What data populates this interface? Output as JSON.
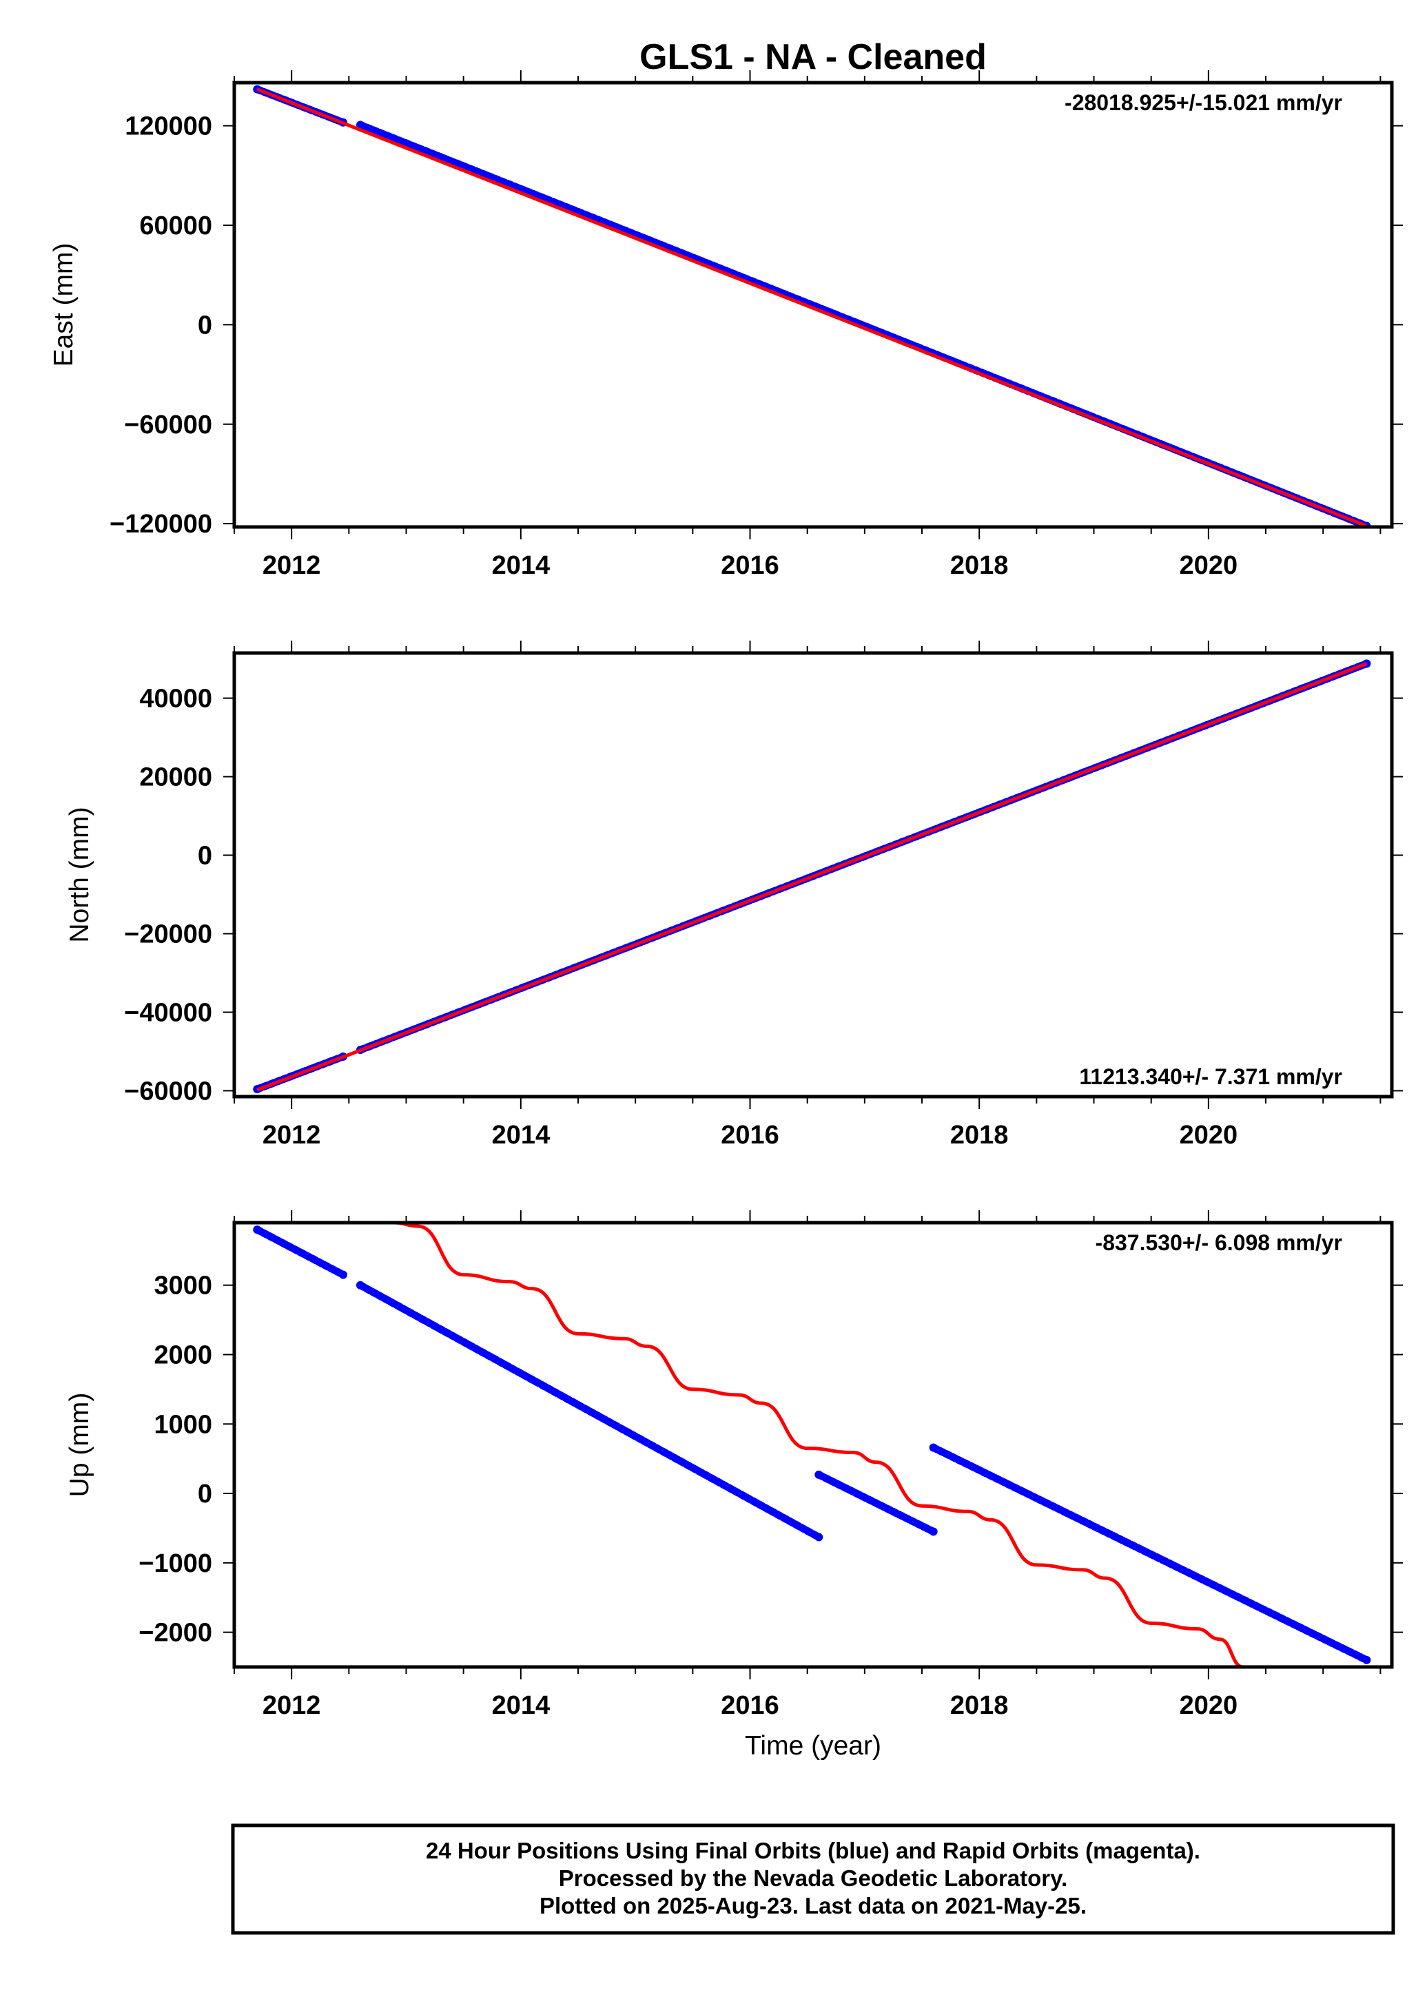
{
  "colors": {
    "final": "#0000ff",
    "rapid": "#ff0000",
    "frame": "#000000"
  },
  "chart_data": {
    "title": "GLS1  - NA - Cleaned",
    "xlabel": "Time (year)",
    "x_ticks": [
      "2012",
      "2014",
      "2016",
      "2018",
      "2020"
    ],
    "xlim": [
      2011.5,
      2021.6
    ],
    "footer": [
      "24 Hour Positions Using Final Orbits (blue) and Rapid Orbits (magenta).",
      "Processed by the Nevada Geodetic Laboratory.",
      "Plotted on 2025-Aug-23. Last data on 2021-May-25."
    ],
    "panels": [
      {
        "type": "scatter",
        "ylabel": "East (mm)",
        "ylim": [
          -122000,
          146000
        ],
        "y_ticks": [
          120000,
          60000,
          0,
          -60000,
          -120000
        ],
        "y_tick_labels": [
          "120000",
          "60000",
          "0",
          "−60000",
          "−120000"
        ],
        "rate": "-28018.925+/-15.021 mm/yr",
        "rate_position": "top-right",
        "series": [
          {
            "type": "scatter",
            "segments": [
              [
                2011.7,
                2012.45,
                142000,
                122000
              ],
              [
                2012.6,
                2021.38,
                120500,
                -121400
              ]
            ]
          },
          {
            "type": "line",
            "x": [
              2011.7,
              2021.38
            ],
            "y": [
              142000,
              -121400
            ]
          }
        ]
      },
      {
        "type": "scatter",
        "ylabel": "North (mm)",
        "ylim": [
          -61500,
          51500
        ],
        "y_ticks": [
          40000,
          20000,
          0,
          -20000,
          -40000,
          -60000
        ],
        "y_tick_labels": [
          "40000",
          "20000",
          "0",
          "−20000",
          "−40000",
          "−60000"
        ],
        "rate": "11213.340+/- 7.371 mm/yr",
        "rate_position": "bottom-right",
        "series": [
          {
            "type": "scatter",
            "segments": [
              [
                2011.7,
                2012.45,
                -59600,
                -51300
              ],
              [
                2012.6,
                2021.38,
                -49600,
                48800
              ]
            ]
          },
          {
            "type": "line",
            "x": [
              2011.7,
              2021.38
            ],
            "y": [
              -59800,
              48800
            ]
          }
        ]
      },
      {
        "type": "scatter",
        "ylabel": "Up (mm)",
        "ylim": [
          -2500,
          3900
        ],
        "y_ticks": [
          3000,
          2000,
          1000,
          0,
          -1000,
          -2000
        ],
        "y_tick_labels": [
          "3000",
          "2000",
          "1000",
          "0",
          "−1000",
          "−2000"
        ],
        "rate": "-837.530+/- 6.098 mm/yr",
        "rate_position": "top-right",
        "series": [
          {
            "type": "scatter",
            "segments": [
              [
                2011.7,
                2012.45,
                3800,
                3150
              ],
              [
                2012.6,
                2016.6,
                3000,
                -630
              ],
              [
                2016.6,
                2017.6,
                270,
                -550
              ],
              [
                2017.6,
                2021.38,
                660,
                -2400
              ]
            ]
          },
          {
            "type": "line",
            "x": [
              2012.4,
              2012.9,
              2013.1,
              2013.5,
              2013.9,
              2014.1,
              2014.5,
              2014.9,
              2015.1,
              2015.5,
              2015.9,
              2016.1,
              2016.5,
              2016.9,
              2017.1,
              2017.5,
              2017.9,
              2018.1,
              2018.5,
              2018.9,
              2019.1,
              2019.5,
              2019.9,
              2020.1,
              2020.3
            ],
            "y": [
              3900,
              3900,
              3850,
              3150,
              3050,
              2950,
              2300,
              2230,
              2120,
              1500,
              1420,
              1300,
              650,
              590,
              450,
              -180,
              -260,
              -380,
              -1030,
              -1100,
              -1220,
              -1870,
              -1950,
              -2100,
              -2500
            ]
          }
        ]
      }
    ]
  }
}
